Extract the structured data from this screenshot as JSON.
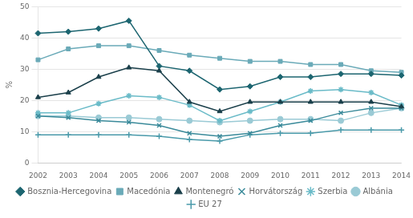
{
  "chart_data": {
    "type": "line",
    "categories": [
      "2002",
      "2003",
      "2004",
      "2005",
      "2006",
      "2007",
      "2008",
      "2009",
      "2010",
      "2011",
      "2012",
      "2013",
      "2014"
    ],
    "series": [
      {
        "name": "Bosznia-Hercegovina",
        "color": "#1c6570",
        "marker": "diamond",
        "values": [
          41.5,
          42.0,
          43.0,
          45.5,
          31.0,
          29.5,
          23.5,
          24.5,
          27.5,
          27.5,
          28.5,
          28.5,
          28.0
        ]
      },
      {
        "name": "Macedónia",
        "color": "#6aaab8",
        "marker": "square",
        "values": [
          33.0,
          36.5,
          37.5,
          37.5,
          36.0,
          34.5,
          33.5,
          32.5,
          32.5,
          31.5,
          31.5,
          29.5,
          29.0
        ]
      },
      {
        "name": "Montenegró",
        "color": "#1a3f4a",
        "marker": "triangle",
        "values": [
          21.0,
          22.5,
          27.5,
          30.5,
          29.5,
          19.5,
          16.5,
          19.5,
          19.5,
          19.5,
          19.5,
          19.5,
          18.0
        ]
      },
      {
        "name": "Horvátország",
        "color": "#3a8a9a",
        "marker": "x",
        "values": [
          15.0,
          14.5,
          13.5,
          13.0,
          12.0,
          9.5,
          8.5,
          9.5,
          12.0,
          13.5,
          16.0,
          17.5,
          17.5
        ]
      },
      {
        "name": "Szerbia",
        "color": "#6abbc8",
        "marker": "star",
        "values": [
          16.0,
          16.0,
          19.0,
          21.5,
          21.0,
          18.5,
          13.5,
          16.5,
          19.5,
          23.0,
          23.5,
          22.5,
          18.5
        ]
      },
      {
        "name": "Albánia",
        "color": "#9acad5",
        "marker": "circle",
        "values": [
          15.0,
          15.0,
          14.5,
          14.5,
          14.0,
          13.5,
          13.0,
          13.5,
          14.0,
          14.0,
          13.5,
          16.0,
          17.5
        ]
      },
      {
        "name": "EU 27",
        "color": "#4a9aaa",
        "marker": "plus",
        "values": [
          9.0,
          9.0,
          9.0,
          9.0,
          8.5,
          7.5,
          7.0,
          9.0,
          9.5,
          9.5,
          10.5,
          10.5,
          10.5
        ]
      }
    ],
    "ylabel": "%",
    "ylim": [
      0,
      50
    ],
    "yticks": [
      0,
      10,
      20,
      30,
      40,
      50
    ],
    "grid": true,
    "legend": "bottom"
  }
}
